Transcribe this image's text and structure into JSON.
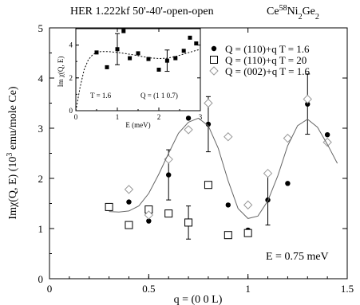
{
  "chart_data": [
    {
      "type": "scatter",
      "title": "HER 1.222kf 50'-40'-open-open",
      "subtitle": "Ce58Ni2Ge2",
      "xlabel": "q = (0 0 L)",
      "ylabel": "Imχ(Q, E)  (10³ emu/mole Ce)",
      "xlim": [
        0,
        1.5
      ],
      "ylim": [
        0,
        5
      ],
      "xticks": [
        "0",
        "0.5",
        "1",
        "1.5"
      ],
      "yticks": [
        "0",
        "1",
        "2",
        "3",
        "4",
        "5"
      ],
      "annotation": "E = 0.75 meV",
      "legend_position": "top-right",
      "series": [
        {
          "name": "Q = (110)+q  T = 1.6",
          "marker": "filled-circle",
          "x": [
            0.3,
            0.4,
            0.5,
            0.6,
            0.7,
            0.8,
            0.9,
            1.0,
            1.1,
            1.2,
            1.3,
            1.4
          ],
          "y": [
            1.42,
            1.53,
            1.15,
            2.07,
            3.2,
            3.08,
            1.47,
            0.97,
            1.57,
            1.9,
            3.48,
            2.87
          ],
          "err": [
            null,
            null,
            null,
            0.5,
            null,
            0.55,
            null,
            null,
            0.5,
            null,
            0.6,
            null
          ]
        },
        {
          "name": "Q = (110)+q  T = 20",
          "marker": "open-square",
          "x": [
            0.3,
            0.4,
            0.5,
            0.6,
            0.7,
            0.8,
            0.9,
            1.0
          ],
          "y": [
            1.43,
            1.07,
            1.38,
            1.3,
            1.12,
            1.87,
            0.87,
            0.91
          ],
          "err": [
            null,
            null,
            null,
            null,
            0.33,
            null,
            null,
            null
          ]
        },
        {
          "name": "Q = (002)+q  T = 1.6",
          "marker": "open-diamond",
          "x": [
            0.4,
            0.5,
            0.6,
            0.7,
            0.8,
            0.9,
            1.0,
            1.1,
            1.2,
            1.3,
            1.4
          ],
          "y": [
            1.78,
            1.27,
            2.38,
            2.97,
            3.5,
            2.83,
            1.47,
            2.1,
            2.8,
            3.58,
            2.72
          ],
          "err": [
            null,
            null,
            null,
            null,
            null,
            null,
            null,
            null,
            null,
            null,
            null
          ]
        },
        {
          "name": "fit",
          "type": "line",
          "x": [
            0.3,
            0.35,
            0.4,
            0.45,
            0.5,
            0.55,
            0.6,
            0.65,
            0.7,
            0.75,
            0.8,
            0.85,
            0.9,
            0.95,
            1.0,
            1.05,
            1.1,
            1.15,
            1.2,
            1.25,
            1.3,
            1.35,
            1.4,
            1.45
          ],
          "y": [
            1.34,
            1.33,
            1.35,
            1.45,
            1.7,
            2.08,
            2.5,
            2.9,
            3.12,
            3.2,
            3.05,
            2.6,
            1.95,
            1.4,
            1.2,
            1.25,
            1.55,
            2.05,
            2.65,
            3.05,
            3.18,
            3.02,
            2.68,
            2.3
          ]
        }
      ]
    },
    {
      "type": "scatter",
      "inset": true,
      "xlabel": "E (meV)",
      "ylabel": "Im χ(Q, E)",
      "xlim": [
        0,
        3
      ],
      "ylim": [
        0,
        5
      ],
      "xticks": [
        "0",
        "1",
        "2",
        "3"
      ],
      "yticks": [
        "0",
        "2",
        "4"
      ],
      "annotation_t": "T = 1.6",
      "annotation_q": "Q = (1 1 0.7)",
      "series": [
        {
          "name": "data",
          "marker": "filled-square",
          "x": [
            0.5,
            0.75,
            1.0,
            1.15,
            1.3,
            1.5,
            1.75,
            2.0,
            2.2,
            2.4,
            2.6,
            2.75,
            2.9
          ],
          "y": [
            3.55,
            2.65,
            3.75,
            4.85,
            3.2,
            3.5,
            3.15,
            2.5,
            3.05,
            3.2,
            3.65,
            4.45,
            4.1
          ],
          "err": [
            null,
            null,
            0.95,
            null,
            null,
            null,
            null,
            null,
            0.65,
            null,
            null,
            null,
            null
          ]
        },
        {
          "name": "fit",
          "type": "line",
          "x": [
            0,
            0.1,
            0.2,
            0.3,
            0.4,
            0.5,
            0.6,
            0.8,
            1.0,
            1.2,
            1.4,
            1.6,
            1.8,
            2.0,
            2.2,
            2.4,
            2.6,
            2.8,
            3.0
          ],
          "y": [
            0,
            1.4,
            2.5,
            3.1,
            3.4,
            3.55,
            3.6,
            3.6,
            3.55,
            3.48,
            3.4,
            3.3,
            3.22,
            3.18,
            3.2,
            3.3,
            3.45,
            3.6,
            3.75
          ]
        }
      ]
    }
  ]
}
